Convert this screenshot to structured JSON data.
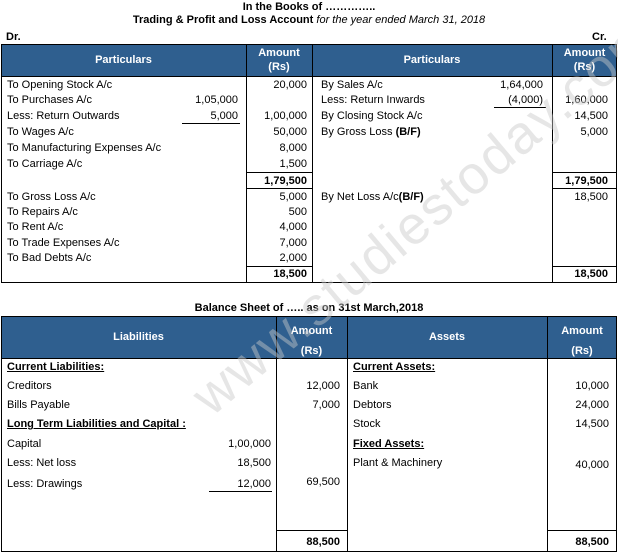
{
  "header": {
    "line1": "In the Books of …………..",
    "line2_bold": "Trading & Profit and Loss Account",
    "line2_italic": "for the year ended March 31, 2018",
    "dr": "Dr.",
    "cr": "Cr."
  },
  "trading": {
    "col_particulars": "Particulars",
    "col_amount_1": "Amount",
    "col_amount_2": "(Rs)",
    "debit": [
      {
        "label": "To Opening Stock A/c",
        "sub": "",
        "amount": "20,000"
      },
      {
        "label": "To Purchases A/c",
        "sub": "1,05,000",
        "amount": ""
      },
      {
        "label": "Less: Return Outwards",
        "sub": "5,000",
        "amount": "1,00,000"
      },
      {
        "label": "To Wages A/c",
        "sub": "",
        "amount": "50,000"
      },
      {
        "label": "To Manufacturing Expenses A/c",
        "sub": "",
        "amount": "8,000"
      },
      {
        "label": "To Carriage A/c",
        "sub": "",
        "amount": "1,500"
      }
    ],
    "subtotal_left": "1,79,500",
    "credit": [
      {
        "label": "By Sales A/c",
        "sub": "1,64,000",
        "amount": ""
      },
      {
        "label": "Less: Return Inwards",
        "sub": "(4,000)",
        "amount": "1,60,000"
      },
      {
        "label": "By Closing Stock A/c",
        "sub": "",
        "amount": "14,500"
      },
      {
        "label": "By Gross Loss ",
        "bold_part": "(B/F)",
        "sub": "",
        "amount": "5,000"
      }
    ],
    "subtotal_right": "1,79,500",
    "pl_debit": [
      {
        "label": "To Gross Loss A/c",
        "amount": "5,000"
      },
      {
        "label": "To Repairs A/c",
        "amount": "500"
      },
      {
        "label": "To Rent A/c",
        "amount": "4,000"
      },
      {
        "label": "To Trade Expenses A/c",
        "amount": "7,000"
      },
      {
        "label": "To Bad Debts A/c",
        "amount": "2,000"
      }
    ],
    "pl_credit": [
      {
        "label": "By Net Loss A/c",
        "bold_part": "(B/F)",
        "amount": "18,500"
      }
    ],
    "total_left": "18,500",
    "total_right": "18,500"
  },
  "balance": {
    "title": "Balance Sheet of ….. as on 31st March,2018",
    "col_liabilities": "Liabilities",
    "col_assets": "Assets",
    "col_amount_1": "Amount",
    "col_amount_2": "(Rs)",
    "liabilities": [
      {
        "label": "Current Liabilities:",
        "heading": true
      },
      {
        "label": "Creditors",
        "amount": "12,000"
      },
      {
        "label": "Bills Payable",
        "amount": "7,000"
      },
      {
        "label": "Long Term Liabilities and Capital :",
        "heading": true
      },
      {
        "label": "Capital",
        "sub": "1,00,000"
      },
      {
        "label": "Less: Net loss",
        "sub": "18,500"
      },
      {
        "label": "Less: Drawings",
        "sub": "12,000",
        "amount": "69,500"
      }
    ],
    "assets": [
      {
        "label": "Current Assets:",
        "heading": true
      },
      {
        "label": "Bank",
        "amount": "10,000"
      },
      {
        "label": "Debtors",
        "amount": "24,000"
      },
      {
        "label": "Stock",
        "amount": "14,500"
      },
      {
        "label": "Fixed Assets:",
        "heading": true
      },
      {
        "label": "Plant & Machinery",
        "amount": "40,000"
      }
    ],
    "total_left": "88,500",
    "total_right": "88,500"
  },
  "watermark": "www.studiestoday.com"
}
